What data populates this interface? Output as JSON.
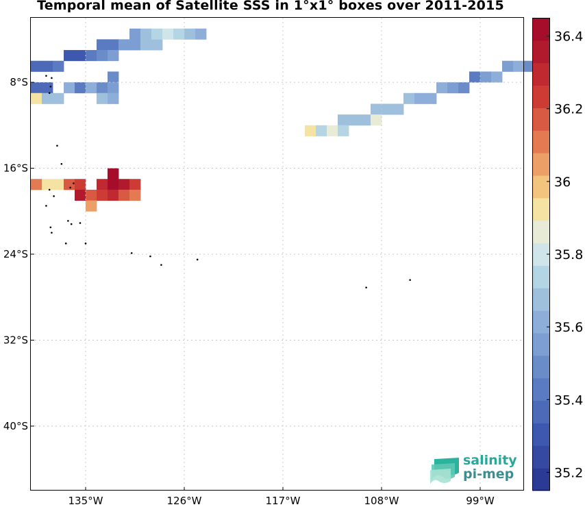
{
  "title": "Temporal mean of Satellite SSS in 1°x1° boxes over 2011-2015",
  "logo": {
    "line1": "salinity",
    "line2": "pi-mep"
  },
  "colors": {
    "background": "#ffffff",
    "grid": "#c8c8c8",
    "land": "#000000",
    "colormap": [
      "#2b3a95",
      "#3549a3",
      "#3e58b0",
      "#4d6ab9",
      "#5a7bc2",
      "#6a8dca",
      "#7c9ed2",
      "#8daed8",
      "#9ec0dd",
      "#b4d5e3",
      "#cfe5e9",
      "#e8ecd7",
      "#f5e3a4",
      "#f3c47e",
      "#ec9f66",
      "#e47a51",
      "#d85a42",
      "#cc3b34",
      "#c02930",
      "#b11a2c",
      "#a50d2a"
    ]
  },
  "chart_data": {
    "type": "heatmap",
    "title": "Temporal mean of Satellite SSS in 1°x1° boxes over 2011-2015",
    "xlabel": "",
    "ylabel": "",
    "xlim": [
      -140,
      -95
    ],
    "ylim": [
      -46,
      -2
    ],
    "xticks": [
      -135,
      -126,
      -117,
      -108,
      -99
    ],
    "xticklabels": [
      "135°W",
      "126°W",
      "117°W",
      "108°W",
      "99°W"
    ],
    "yticks": [
      -8,
      -16,
      -24,
      -32,
      -40
    ],
    "yticklabels": [
      "8°S",
      "16°S",
      "24°S",
      "32°S",
      "40°S"
    ],
    "colorbar": {
      "min": 35.15,
      "max": 36.45,
      "ticks": [
        35.2,
        35.4,
        35.6,
        35.8,
        36,
        36.2,
        36.4
      ],
      "ticklabels": [
        "35.2",
        "35.4",
        "35.6",
        "35.8",
        "36",
        "36.2",
        "36.4"
      ]
    },
    "grid": true,
    "cell_size_deg": 1,
    "cells": [
      [
        -133.5,
        -4.5,
        35.45
      ],
      [
        -132.5,
        -4.5,
        35.4
      ],
      [
        -131.5,
        -4.5,
        35.55
      ],
      [
        -130.5,
        -4.5,
        35.55
      ],
      [
        -129.5,
        -4.5,
        35.65
      ],
      [
        -128.5,
        -4.5,
        35.65
      ],
      [
        -130.5,
        -3.5,
        35.55
      ],
      [
        -129.5,
        -3.5,
        35.65
      ],
      [
        -128.5,
        -3.5,
        35.75
      ],
      [
        -127.5,
        -3.5,
        35.8
      ],
      [
        -126.5,
        -3.5,
        35.75
      ],
      [
        -125.5,
        -3.5,
        35.7
      ],
      [
        -124.5,
        -3.5,
        35.6
      ],
      [
        -136.5,
        -5.5,
        35.3
      ],
      [
        -135.5,
        -5.5,
        35.3
      ],
      [
        -134.5,
        -5.5,
        35.45
      ],
      [
        -133.5,
        -5.5,
        35.5
      ],
      [
        -132.5,
        -5.5,
        35.55
      ],
      [
        -139.5,
        -6.5,
        35.35
      ],
      [
        -138.5,
        -6.5,
        35.35
      ],
      [
        -137.5,
        -6.5,
        35.45
      ],
      [
        -132.5,
        -7.5,
        35.5
      ],
      [
        -139.5,
        -8.5,
        35.35
      ],
      [
        -138.5,
        -8.5,
        35.35
      ],
      [
        -136.5,
        -8.5,
        35.6
      ],
      [
        -135.5,
        -8.5,
        35.45
      ],
      [
        -134.5,
        -8.5,
        35.6
      ],
      [
        -133.5,
        -8.5,
        35.5
      ],
      [
        -132.5,
        -8.5,
        35.55
      ],
      [
        -139.5,
        -9.5,
        35.9
      ],
      [
        -138.5,
        -9.5,
        35.65
      ],
      [
        -137.5,
        -9.5,
        35.65
      ],
      [
        -133.5,
        -9.5,
        35.65
      ],
      [
        -132.5,
        -9.5,
        35.6
      ],
      [
        -96.5,
        -6.5,
        35.55
      ],
      [
        -95.5,
        -6.5,
        35.6
      ],
      [
        -94.5,
        -6.5,
        35.5
      ],
      [
        -99.5,
        -7.5,
        35.45
      ],
      [
        -98.5,
        -7.5,
        35.55
      ],
      [
        -97.5,
        -7.5,
        35.6
      ],
      [
        -102.5,
        -8.5,
        35.6
      ],
      [
        -101.5,
        -8.5,
        35.55
      ],
      [
        -100.5,
        -8.5,
        35.5
      ],
      [
        -105.5,
        -9.5,
        35.65
      ],
      [
        -104.5,
        -9.5,
        35.6
      ],
      [
        -103.5,
        -9.5,
        35.6
      ],
      [
        -108.5,
        -10.5,
        35.65
      ],
      [
        -107.5,
        -10.5,
        35.7
      ],
      [
        -106.5,
        -10.5,
        35.7
      ],
      [
        -111.5,
        -11.5,
        35.7
      ],
      [
        -110.5,
        -11.5,
        35.65
      ],
      [
        -109.5,
        -11.5,
        35.65
      ],
      [
        -108.5,
        -11.5,
        35.85
      ],
      [
        -114.5,
        -12.5,
        35.9
      ],
      [
        -113.5,
        -12.5,
        35.75
      ],
      [
        -112.5,
        -12.5,
        35.85
      ],
      [
        -111.5,
        -12.5,
        35.75
      ],
      [
        -132.5,
        -16.5,
        36.4
      ],
      [
        -139.5,
        -17.5,
        36.1
      ],
      [
        -138.5,
        -17.5,
        35.95
      ],
      [
        -137.5,
        -17.5,
        35.95
      ],
      [
        -136.5,
        -17.5,
        36.15
      ],
      [
        -135.5,
        -17.5,
        36.25
      ],
      [
        -133.5,
        -17.5,
        36.3
      ],
      [
        -132.5,
        -17.5,
        36.4
      ],
      [
        -131.5,
        -17.5,
        36.35
      ],
      [
        -130.5,
        -17.5,
        36.25
      ],
      [
        -135.5,
        -18.5,
        36.35
      ],
      [
        -134.5,
        -18.5,
        36.2
      ],
      [
        -133.5,
        -18.5,
        36.25
      ],
      [
        -132.5,
        -18.5,
        36.3
      ],
      [
        -131.5,
        -18.5,
        36.2
      ],
      [
        -130.5,
        -18.5,
        36.1
      ],
      [
        -134.5,
        -19.5,
        36.05
      ]
    ]
  }
}
